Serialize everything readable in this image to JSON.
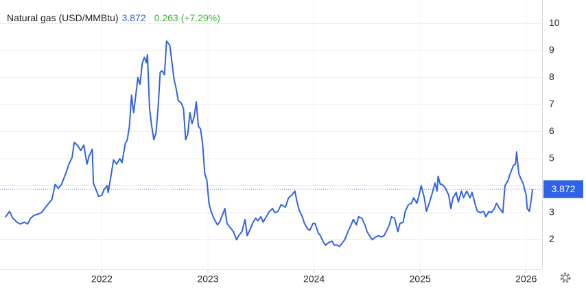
{
  "chart_data": {
    "type": "line",
    "title": "Natural gas (USD/MMBtu)",
    "price": 3.872,
    "change": 0.263,
    "change_percent": "(+7.29%)",
    "x": [
      2021.09,
      2021.13,
      2021.16,
      2021.2,
      2021.23,
      2021.27,
      2021.3,
      2021.33,
      2021.36,
      2021.4,
      2021.43,
      2021.46,
      2021.49,
      2021.53,
      2021.56,
      2021.59,
      2021.62,
      2021.66,
      2021.69,
      2021.72,
      2021.74,
      2021.77,
      2021.8,
      2021.83,
      2021.86,
      2021.88,
      2021.91,
      2021.92,
      2021.95,
      2021.97,
      2022.0,
      2022.02,
      2022.05,
      2022.06,
      2022.09,
      2022.11,
      2022.14,
      2022.17,
      2022.19,
      2022.22,
      2022.24,
      2022.26,
      2022.28,
      2022.3,
      2022.32,
      2022.34,
      2022.36,
      2022.38,
      2022.4,
      2022.42,
      2022.43,
      2022.45,
      2022.47,
      2022.49,
      2022.51,
      2022.53,
      2022.55,
      2022.57,
      2022.59,
      2022.61,
      2022.64,
      2022.66,
      2022.68,
      2022.7,
      2022.72,
      2022.75,
      2022.77,
      2022.79,
      2022.81,
      2022.83,
      2022.85,
      2022.87,
      2022.89,
      2022.91,
      2022.93,
      2022.95,
      2022.97,
      2022.99,
      2023.01,
      2023.03,
      2023.06,
      2023.09,
      2023.11,
      2023.16,
      2023.18,
      2023.21,
      2023.24,
      2023.27,
      2023.29,
      2023.32,
      2023.35,
      2023.37,
      2023.4,
      2023.42,
      2023.45,
      2023.47,
      2023.5,
      2023.52,
      2023.55,
      2023.58,
      2023.61,
      2023.63,
      2023.66,
      2023.69,
      2023.73,
      2023.76,
      2023.79,
      2023.82,
      2023.84,
      2023.86,
      2023.89,
      2023.91,
      2023.94,
      2023.96,
      2023.99,
      2024.01,
      2024.04,
      2024.06,
      2024.09,
      2024.11,
      2024.14,
      2024.17,
      2024.19,
      2024.22,
      2024.24,
      2024.27,
      2024.29,
      2024.32,
      2024.35,
      2024.37,
      2024.4,
      2024.42,
      2024.45,
      2024.48,
      2024.5,
      2024.53,
      2024.55,
      2024.58,
      2024.61,
      2024.63,
      2024.66,
      2024.68,
      2024.71,
      2024.73,
      2024.76,
      2024.79,
      2024.81,
      2024.84,
      2024.86,
      2024.89,
      2024.92,
      2024.94,
      2024.97,
      2024.99,
      2025.01,
      2025.04,
      2025.06,
      2025.09,
      2025.12,
      2025.14,
      2025.16,
      2025.17,
      2025.19,
      2025.21,
      2025.24,
      2025.27,
      2025.29,
      2025.31,
      2025.34,
      2025.36,
      2025.39,
      2025.41,
      2025.44,
      2025.47,
      2025.49,
      2025.52,
      2025.54,
      2025.57,
      2025.6,
      2025.62,
      2025.65,
      2025.67,
      2025.7,
      2025.72,
      2025.75,
      2025.78,
      2025.8,
      2025.83,
      2025.85,
      2025.88,
      2025.9,
      2025.91,
      2025.93,
      2025.95,
      2025.97,
      2026.0,
      2026.01,
      2026.03,
      2026.05,
      2026.06
    ],
    "series": [
      {
        "name": "Natural gas (USD/MMBtu)",
        "color": "#2f62e8",
        "values": [
          2.83,
          3.05,
          2.8,
          2.65,
          2.58,
          2.65,
          2.58,
          2.8,
          2.9,
          2.95,
          3.0,
          3.15,
          3.3,
          3.5,
          4.05,
          3.9,
          4.05,
          4.45,
          4.8,
          5.05,
          5.6,
          5.5,
          5.3,
          5.5,
          4.8,
          5.1,
          5.35,
          4.1,
          3.8,
          3.6,
          3.65,
          3.85,
          4.0,
          3.75,
          4.45,
          4.95,
          4.8,
          5.0,
          4.85,
          5.55,
          5.7,
          6.2,
          7.35,
          6.7,
          7.35,
          8.0,
          7.75,
          8.5,
          8.75,
          8.55,
          8.85,
          6.85,
          6.2,
          5.7,
          5.95,
          6.85,
          8.2,
          8.25,
          8.1,
          9.35,
          9.2,
          8.6,
          7.95,
          7.6,
          7.15,
          7.05,
          6.85,
          5.7,
          5.9,
          6.7,
          6.3,
          6.55,
          7.1,
          6.2,
          6.1,
          5.55,
          4.45,
          4.2,
          3.35,
          3.05,
          2.75,
          2.55,
          2.65,
          3.15,
          2.6,
          2.45,
          2.3,
          2.0,
          2.15,
          2.3,
          2.75,
          2.15,
          2.4,
          2.6,
          2.8,
          2.7,
          2.85,
          2.65,
          2.85,
          3.05,
          3.15,
          3.0,
          3.05,
          3.3,
          3.2,
          3.55,
          3.65,
          3.8,
          3.4,
          3.1,
          2.85,
          2.6,
          2.4,
          2.35,
          2.6,
          2.6,
          2.25,
          2.15,
          1.9,
          1.8,
          1.9,
          1.95,
          1.8,
          1.8,
          1.75,
          1.9,
          2.0,
          2.3,
          2.55,
          2.75,
          2.55,
          2.85,
          2.8,
          2.55,
          2.3,
          2.1,
          2.0,
          2.1,
          2.15,
          2.1,
          2.15,
          2.3,
          2.55,
          2.85,
          2.8,
          2.3,
          2.6,
          2.65,
          3.05,
          3.3,
          3.35,
          3.55,
          3.35,
          3.65,
          4.0,
          3.55,
          3.05,
          3.4,
          3.8,
          4.1,
          3.8,
          4.35,
          4.05,
          4.05,
          3.9,
          3.65,
          3.15,
          3.55,
          3.75,
          3.4,
          3.8,
          3.55,
          3.8,
          3.55,
          3.75,
          3.3,
          3.05,
          3.0,
          3.05,
          2.85,
          3.05,
          3.0,
          3.15,
          3.35,
          3.15,
          3.0,
          4.0,
          4.2,
          4.45,
          4.75,
          4.8,
          5.25,
          4.45,
          4.25,
          4.1,
          3.65,
          3.15,
          3.05,
          3.55,
          3.872
        ]
      }
    ],
    "xlim": [
      2021.04,
      2026.15
    ],
    "xticks": [
      2022,
      2023,
      2024,
      2025,
      2026
    ],
    "ylim": [
      1,
      10.87
    ],
    "yticks": [
      2,
      3,
      4,
      5,
      6,
      7,
      8,
      9,
      10
    ],
    "grid": true
  }
}
